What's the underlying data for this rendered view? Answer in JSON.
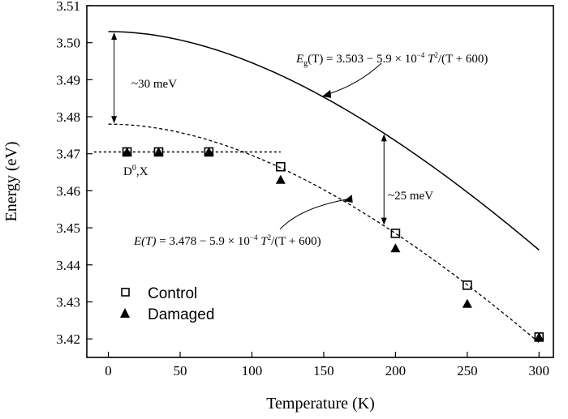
{
  "chart_data": {
    "type": "scatter",
    "xlabel": "Temperature (K)",
    "ylabel": "Energy (eV)",
    "xlim": [
      -15,
      310
    ],
    "ylim": [
      3.415,
      3.51
    ],
    "x_ticks": [
      0,
      50,
      100,
      150,
      200,
      250,
      300
    ],
    "y_ticks": [
      3.42,
      3.43,
      3.44,
      3.45,
      3.46,
      3.47,
      3.48,
      3.49,
      3.5,
      3.51
    ],
    "legend_position": "bottom-left",
    "grid": false,
    "series": [
      {
        "name": "Control",
        "marker": "open-square",
        "points": [
          [
            13,
            3.4705
          ],
          [
            35,
            3.4705
          ],
          [
            70,
            3.4705
          ],
          [
            120,
            3.4665
          ],
          [
            200,
            3.4485
          ],
          [
            250,
            3.4345
          ],
          [
            300,
            3.4205
          ]
        ]
      },
      {
        "name": "Damaged",
        "marker": "filled-triangle",
        "points": [
          [
            13,
            3.4705
          ],
          [
            35,
            3.4705
          ],
          [
            70,
            3.4705
          ],
          [
            120,
            3.463
          ],
          [
            200,
            3.4445
          ],
          [
            250,
            3.4295
          ],
          [
            300,
            3.4205
          ]
        ]
      }
    ],
    "curves": [
      {
        "style": "solid",
        "E0": 3.503,
        "alpha": 0.00059,
        "beta": 600,
        "x_range": [
          0,
          300
        ]
      },
      {
        "style": "dashed",
        "E0": 3.478,
        "alpha": 0.00059,
        "beta": 600,
        "x_range": [
          0,
          300
        ]
      }
    ],
    "flat_line": {
      "style": "dotted",
      "y": 3.4705,
      "x_range": [
        -10,
        120
      ]
    },
    "annotations": {
      "eg_formula": {
        "lhs_main": "E",
        "lhs_sub": "g",
        "lhs_arg": "(T)",
        "rhs_a": " = 3.503 − 5.9 × 10",
        "exp": "−4",
        "rhs_t": " T",
        "sq": "2",
        "rhs_b": "/(T + 600)"
      },
      "e_formula": {
        "lhs": "E(T)",
        "rhs_a": " = 3.478 − 5.9 × 10",
        "exp": "−4",
        "rhs_t": " T",
        "sq": "2",
        "rhs_b": "/(T + 600)"
      },
      "gap_30": "~30 meV",
      "gap_25": "~25 meV",
      "d0x_main": "D",
      "d0x_sup": "0",
      "d0x_rest": ",X"
    }
  }
}
